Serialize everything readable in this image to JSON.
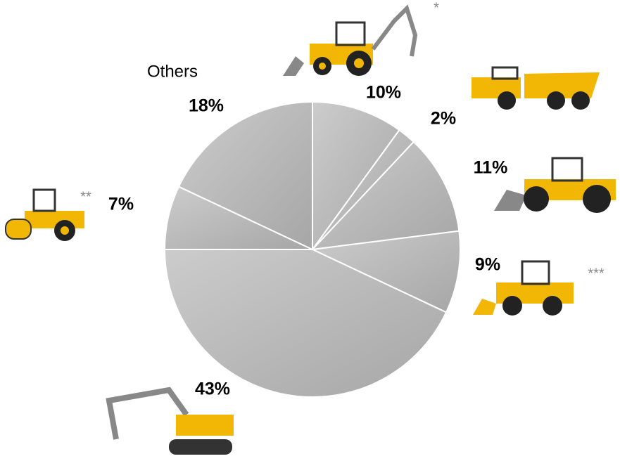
{
  "chart_data": {
    "type": "pie",
    "categories": [
      null,
      null,
      null,
      null,
      null,
      null,
      "Others"
    ],
    "values": [
      10,
      2,
      11,
      9,
      43,
      7,
      18
    ],
    "value_labels": [
      "10%",
      "2%",
      "11%",
      "9%",
      "43%",
      "7%",
      "18%"
    ],
    "notes": [
      "*",
      null,
      null,
      "***",
      null,
      "**",
      null
    ],
    "color": "#a6a6a6"
  }
}
